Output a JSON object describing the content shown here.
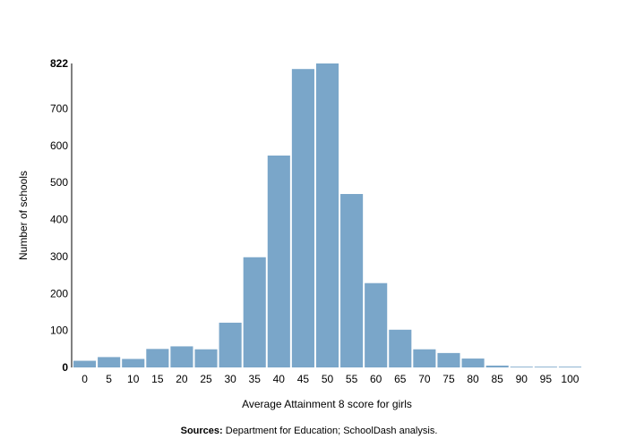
{
  "chart_data": {
    "type": "bar",
    "categories": [
      "0",
      "5",
      "10",
      "15",
      "20",
      "25",
      "30",
      "35",
      "40",
      "45",
      "50",
      "55",
      "60",
      "65",
      "70",
      "75",
      "80",
      "85",
      "90",
      "95",
      "100"
    ],
    "values": [
      18,
      28,
      23,
      50,
      57,
      49,
      121,
      298,
      573,
      807,
      822,
      469,
      228,
      102,
      49,
      39,
      24,
      5,
      2,
      2,
      2
    ],
    "xlabel": "Average Attainment 8 score for girls",
    "ylabel": "Number of schools",
    "ylim": [
      0,
      822
    ],
    "yticks": [
      "0",
      "100",
      "200",
      "300",
      "400",
      "500",
      "600",
      "700",
      "822"
    ],
    "bar_color": "#7aa6c9",
    "grid": false,
    "legend": "none"
  },
  "footer": {
    "sources_label": "Sources:",
    "sources_text": "Department for Education; SchoolDash analysis."
  }
}
